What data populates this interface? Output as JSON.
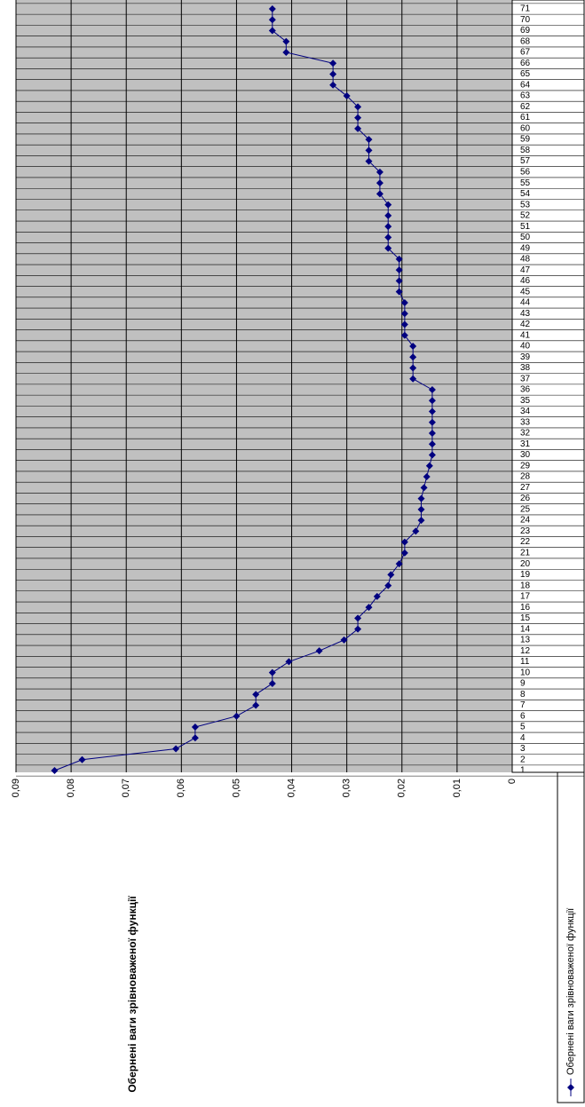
{
  "chart_data": {
    "type": "line",
    "title": "Обернені ваги зрівноваженої функції",
    "categories": [
      "1",
      "2",
      "3",
      "4",
      "5",
      "6",
      "7",
      "8",
      "9",
      "10",
      "11",
      "12",
      "13",
      "14",
      "15",
      "16",
      "17",
      "18",
      "19",
      "20",
      "21",
      "22",
      "23",
      "24",
      "25",
      "26",
      "27",
      "28",
      "29",
      "30",
      "31",
      "32",
      "33",
      "34",
      "35",
      "36",
      "37",
      "38",
      "39",
      "40",
      "41",
      "42",
      "43",
      "44",
      "45",
      "46",
      "47",
      "48",
      "49",
      "50",
      "51",
      "52",
      "53",
      "54",
      "55",
      "56",
      "57",
      "58",
      "59",
      "60",
      "61",
      "62",
      "63",
      "64",
      "65",
      "66",
      "67",
      "68",
      "69",
      "70",
      "71"
    ],
    "series": [
      {
        "name": "Обернені ваги зрівноваженої функції",
        "color": "#000080",
        "values": [
          0.083,
          0.078,
          0.061,
          0.0575,
          0.0575,
          0.05,
          0.0465,
          0.0465,
          0.0435,
          0.0435,
          0.0405,
          0.035,
          0.0305,
          0.028,
          0.028,
          0.026,
          0.0245,
          0.0225,
          0.022,
          0.0205,
          0.0195,
          0.0195,
          0.0175,
          0.0165,
          0.0165,
          0.0165,
          0.016,
          0.0155,
          0.015,
          0.0145,
          0.0145,
          0.0145,
          0.0145,
          0.0145,
          0.0145,
          0.0145,
          0.018,
          0.018,
          0.018,
          0.018,
          0.0195,
          0.0195,
          0.0195,
          0.0195,
          0.0205,
          0.0205,
          0.0205,
          0.0205,
          0.0225,
          0.0225,
          0.0225,
          0.0225,
          0.0225,
          0.024,
          0.024,
          0.024,
          0.026,
          0.026,
          0.026,
          0.028,
          0.028,
          0.028,
          0.03,
          0.0325,
          0.0325,
          0.0325,
          0.041,
          0.041,
          0.0435,
          0.0435,
          0.0435
        ]
      }
    ],
    "ylim": [
      0,
      0.09
    ],
    "yticks": [
      0,
      {
        "value": 0.01,
        "label": "0,01"
      },
      {
        "value": 0.02,
        "label": "0,02"
      },
      {
        "value": 0.03,
        "label": "0,03"
      },
      {
        "value": 0.04,
        "label": "0,04"
      },
      {
        "value": 0.05,
        "label": "0,05"
      },
      {
        "value": 0.06,
        "label": "0,06"
      },
      {
        "value": 0.07,
        "label": "0,07"
      },
      {
        "value": 0.08,
        "label": "0,08"
      },
      {
        "value": 0.09,
        "label": "0,09"
      }
    ],
    "grid": true
  }
}
